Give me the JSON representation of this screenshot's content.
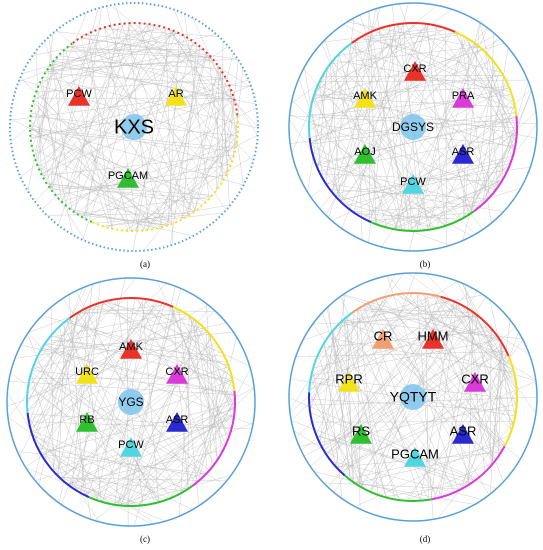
{
  "panels": [
    {
      "caption": "(a)",
      "center_label": "KXS",
      "nodes": [
        {
          "label": "PCW",
          "color": "#e8322a"
        },
        {
          "label": "AR",
          "color": "#f2e21a"
        },
        {
          "label": "PGCAM",
          "color": "#2fbf2f"
        }
      ]
    },
    {
      "caption": "(b)",
      "center_label": "DGSYS",
      "nodes": [
        {
          "label": "CXR",
          "color": "#e8322a"
        },
        {
          "label": "AMK",
          "color": "#f2e21a"
        },
        {
          "label": "PRA",
          "color": "#d93ad9"
        },
        {
          "label": "AOJ",
          "color": "#2fbf2f"
        },
        {
          "label": "ASR",
          "color": "#2a2ad0"
        },
        {
          "label": "PCW",
          "color": "#4fd6e0"
        }
      ]
    },
    {
      "caption": "(c)",
      "center_label": "YGS",
      "nodes": [
        {
          "label": "AMK",
          "color": "#e8322a"
        },
        {
          "label": "URC",
          "color": "#f2e21a"
        },
        {
          "label": "CXR",
          "color": "#d93ad9"
        },
        {
          "label": "RB",
          "color": "#2fbf2f"
        },
        {
          "label": "ASR",
          "color": "#2a2ad0"
        },
        {
          "label": "PCW",
          "color": "#4fd6e0"
        }
      ]
    },
    {
      "caption": "(d)",
      "center_label": "YQTYT",
      "nodes": [
        {
          "label": "CR",
          "color": "#f0a070"
        },
        {
          "label": "HMM",
          "color": "#e8322a"
        },
        {
          "label": "RPR",
          "color": "#f2e21a"
        },
        {
          "label": "CXR",
          "color": "#d93ad9"
        },
        {
          "label": "RS",
          "color": "#2fbf2f"
        },
        {
          "label": "ASR",
          "color": "#2a2ad0"
        },
        {
          "label": "PGCAM",
          "color": "#4fd6e0"
        }
      ]
    }
  ]
}
